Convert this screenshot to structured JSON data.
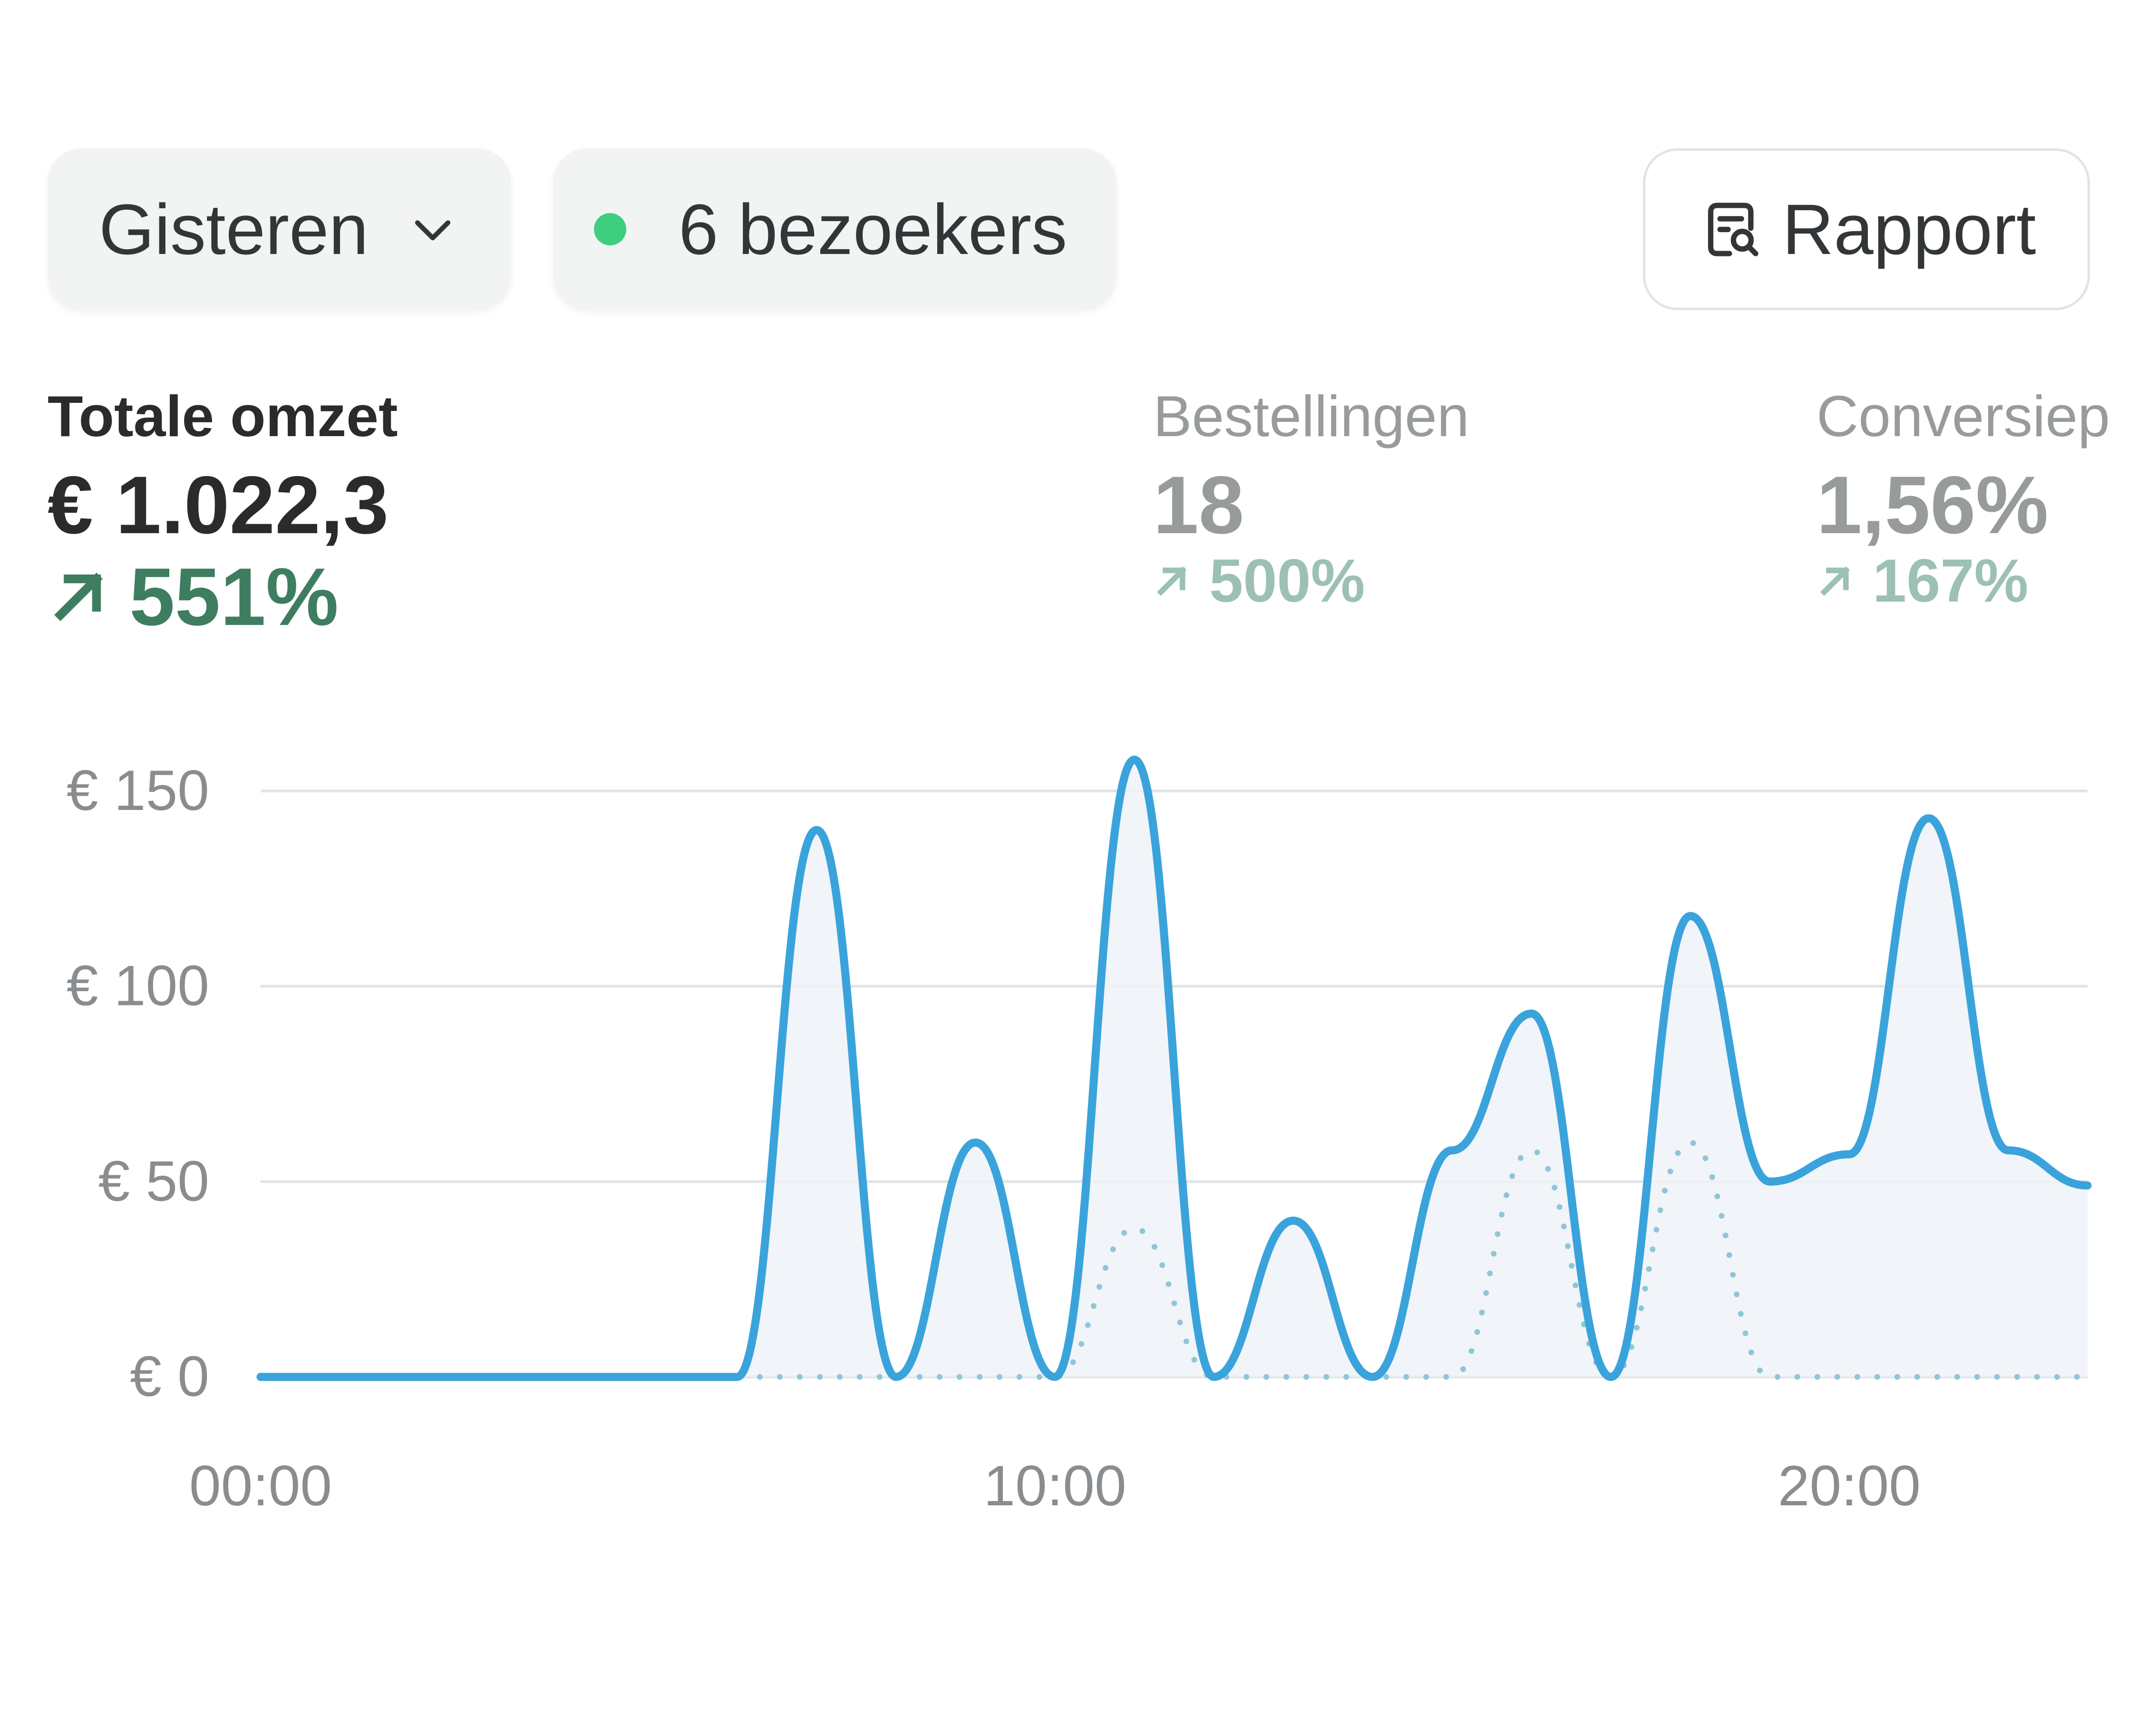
{
  "toolbar": {
    "period_label": "Gisteren",
    "visitors_label": "6 bezoekers",
    "report_label": "Rapport"
  },
  "metrics": {
    "revenue": {
      "label": "Totale omzet",
      "value": "€ 1.022,3",
      "change": "551%"
    },
    "orders": {
      "label": "Bestellingen",
      "value": "18",
      "change": "500%"
    },
    "conversion": {
      "label": "Conversiep",
      "value": "1,56%",
      "change": "167%"
    }
  },
  "colors": {
    "accent": "#3aa3db",
    "comparison": "#8ec6d9",
    "positive": "#3f7d60",
    "positive_muted": "#9cc1b2",
    "live_dot": "#3ecf7e"
  },
  "chart_data": {
    "type": "line",
    "x_ticks": [
      "00:00",
      "10:00",
      "20:00"
    ],
    "y_ticks": [
      "€ 0",
      "€ 50",
      "€ 100",
      "€ 150"
    ],
    "ylim": [
      0,
      150
    ],
    "xlim": [
      0,
      23
    ],
    "grid": true,
    "series": [
      {
        "style": "solid",
        "x": [
          0,
          1,
          2,
          3,
          4,
          5,
          6,
          7,
          8,
          9,
          10,
          11,
          12,
          13,
          14,
          15,
          16,
          17,
          18,
          19,
          20,
          21,
          22,
          23
        ],
        "values": [
          0,
          0,
          0,
          0,
          0,
          0,
          0,
          140,
          0,
          60,
          0,
          158,
          0,
          40,
          0,
          58,
          93,
          0,
          118,
          50,
          57,
          143,
          58,
          49
        ]
      },
      {
        "style": "dotted",
        "x": [
          0,
          1,
          2,
          3,
          4,
          5,
          6,
          7,
          8,
          9,
          10,
          11,
          12,
          13,
          14,
          15,
          16,
          17,
          18,
          19,
          20,
          21,
          22,
          23
        ],
        "values": [
          0,
          0,
          0,
          0,
          0,
          0,
          0,
          0,
          0,
          0,
          0,
          38,
          0,
          0,
          0,
          0,
          58,
          0,
          60,
          0,
          0,
          0,
          0,
          0
        ]
      }
    ]
  }
}
